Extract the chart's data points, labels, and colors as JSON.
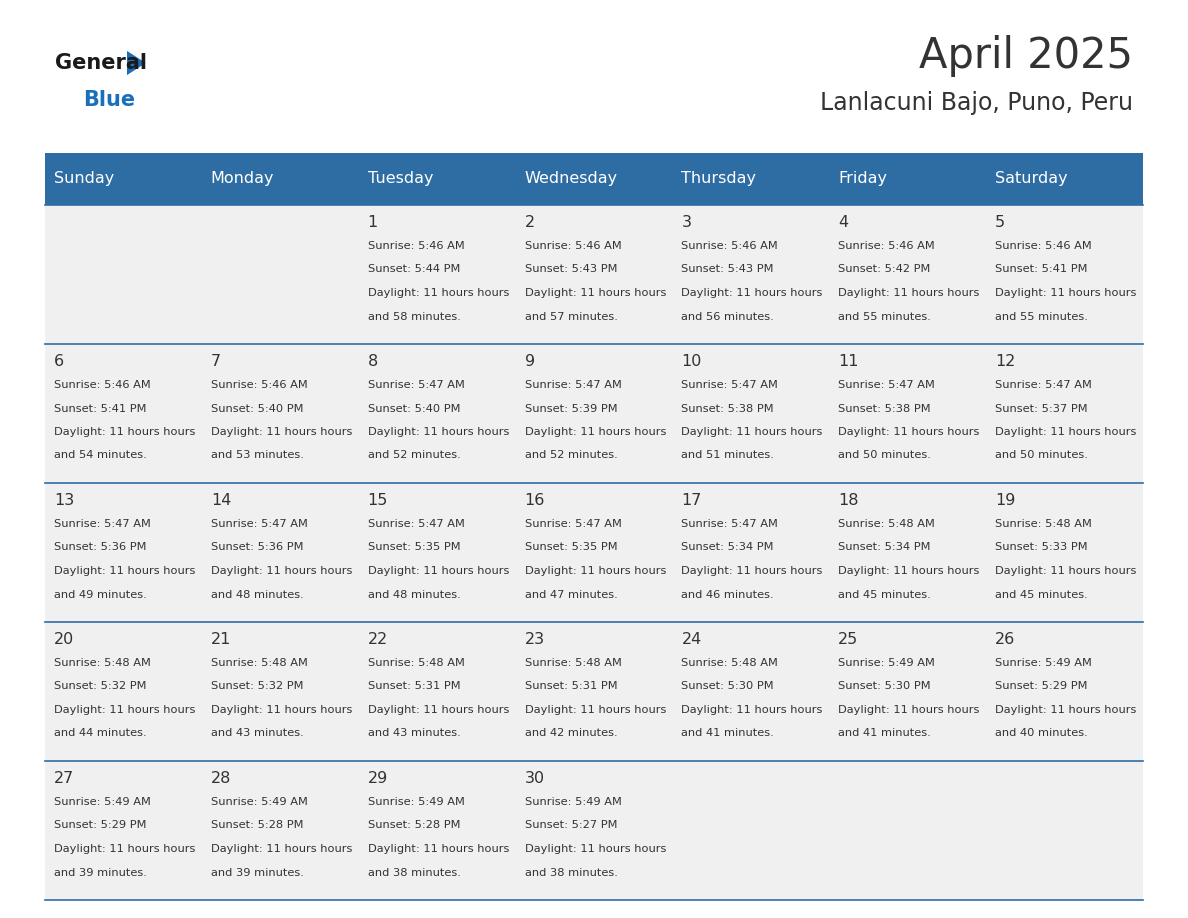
{
  "title": "April 2025",
  "subtitle": "Lanlacuni Bajo, Puno, Peru",
  "days_of_week": [
    "Sunday",
    "Monday",
    "Tuesday",
    "Wednesday",
    "Thursday",
    "Friday",
    "Saturday"
  ],
  "header_bg": "#2E6DA4",
  "header_text": "#FFFFFF",
  "cell_bg": "#F0F0F0",
  "line_color": "#2E6DA4",
  "text_color": "#333333",
  "logo_general_color": "#1a1a1a",
  "logo_blue_color": "#1a6fba",
  "calendar_data": [
    [
      {
        "day": "",
        "sunrise": "",
        "sunset": "",
        "daylight": ""
      },
      {
        "day": "",
        "sunrise": "",
        "sunset": "",
        "daylight": ""
      },
      {
        "day": "1",
        "sunrise": "5:46 AM",
        "sunset": "5:44 PM",
        "daylight": "11 hours and 58 minutes."
      },
      {
        "day": "2",
        "sunrise": "5:46 AM",
        "sunset": "5:43 PM",
        "daylight": "11 hours and 57 minutes."
      },
      {
        "day": "3",
        "sunrise": "5:46 AM",
        "sunset": "5:43 PM",
        "daylight": "11 hours and 56 minutes."
      },
      {
        "day": "4",
        "sunrise": "5:46 AM",
        "sunset": "5:42 PM",
        "daylight": "11 hours and 55 minutes."
      },
      {
        "day": "5",
        "sunrise": "5:46 AM",
        "sunset": "5:41 PM",
        "daylight": "11 hours and 55 minutes."
      }
    ],
    [
      {
        "day": "6",
        "sunrise": "5:46 AM",
        "sunset": "5:41 PM",
        "daylight": "11 hours and 54 minutes."
      },
      {
        "day": "7",
        "sunrise": "5:46 AM",
        "sunset": "5:40 PM",
        "daylight": "11 hours and 53 minutes."
      },
      {
        "day": "8",
        "sunrise": "5:47 AM",
        "sunset": "5:40 PM",
        "daylight": "11 hours and 52 minutes."
      },
      {
        "day": "9",
        "sunrise": "5:47 AM",
        "sunset": "5:39 PM",
        "daylight": "11 hours and 52 minutes."
      },
      {
        "day": "10",
        "sunrise": "5:47 AM",
        "sunset": "5:38 PM",
        "daylight": "11 hours and 51 minutes."
      },
      {
        "day": "11",
        "sunrise": "5:47 AM",
        "sunset": "5:38 PM",
        "daylight": "11 hours and 50 minutes."
      },
      {
        "day": "12",
        "sunrise": "5:47 AM",
        "sunset": "5:37 PM",
        "daylight": "11 hours and 50 minutes."
      }
    ],
    [
      {
        "day": "13",
        "sunrise": "5:47 AM",
        "sunset": "5:36 PM",
        "daylight": "11 hours and 49 minutes."
      },
      {
        "day": "14",
        "sunrise": "5:47 AM",
        "sunset": "5:36 PM",
        "daylight": "11 hours and 48 minutes."
      },
      {
        "day": "15",
        "sunrise": "5:47 AM",
        "sunset": "5:35 PM",
        "daylight": "11 hours and 48 minutes."
      },
      {
        "day": "16",
        "sunrise": "5:47 AM",
        "sunset": "5:35 PM",
        "daylight": "11 hours and 47 minutes."
      },
      {
        "day": "17",
        "sunrise": "5:47 AM",
        "sunset": "5:34 PM",
        "daylight": "11 hours and 46 minutes."
      },
      {
        "day": "18",
        "sunrise": "5:48 AM",
        "sunset": "5:34 PM",
        "daylight": "11 hours and 45 minutes."
      },
      {
        "day": "19",
        "sunrise": "5:48 AM",
        "sunset": "5:33 PM",
        "daylight": "11 hours and 45 minutes."
      }
    ],
    [
      {
        "day": "20",
        "sunrise": "5:48 AM",
        "sunset": "5:32 PM",
        "daylight": "11 hours and 44 minutes."
      },
      {
        "day": "21",
        "sunrise": "5:48 AM",
        "sunset": "5:32 PM",
        "daylight": "11 hours and 43 minutes."
      },
      {
        "day": "22",
        "sunrise": "5:48 AM",
        "sunset": "5:31 PM",
        "daylight": "11 hours and 43 minutes."
      },
      {
        "day": "23",
        "sunrise": "5:48 AM",
        "sunset": "5:31 PM",
        "daylight": "11 hours and 42 minutes."
      },
      {
        "day": "24",
        "sunrise": "5:48 AM",
        "sunset": "5:30 PM",
        "daylight": "11 hours and 41 minutes."
      },
      {
        "day": "25",
        "sunrise": "5:49 AM",
        "sunset": "5:30 PM",
        "daylight": "11 hours and 41 minutes."
      },
      {
        "day": "26",
        "sunrise": "5:49 AM",
        "sunset": "5:29 PM",
        "daylight": "11 hours and 40 minutes."
      }
    ],
    [
      {
        "day": "27",
        "sunrise": "5:49 AM",
        "sunset": "5:29 PM",
        "daylight": "11 hours and 39 minutes."
      },
      {
        "day": "28",
        "sunrise": "5:49 AM",
        "sunset": "5:28 PM",
        "daylight": "11 hours and 39 minutes."
      },
      {
        "day": "29",
        "sunrise": "5:49 AM",
        "sunset": "5:28 PM",
        "daylight": "11 hours and 38 minutes."
      },
      {
        "day": "30",
        "sunrise": "5:49 AM",
        "sunset": "5:27 PM",
        "daylight": "11 hours and 38 minutes."
      },
      {
        "day": "",
        "sunrise": "",
        "sunset": "",
        "daylight": ""
      },
      {
        "day": "",
        "sunrise": "",
        "sunset": "",
        "daylight": ""
      },
      {
        "day": "",
        "sunrise": "",
        "sunset": "",
        "daylight": ""
      }
    ]
  ]
}
